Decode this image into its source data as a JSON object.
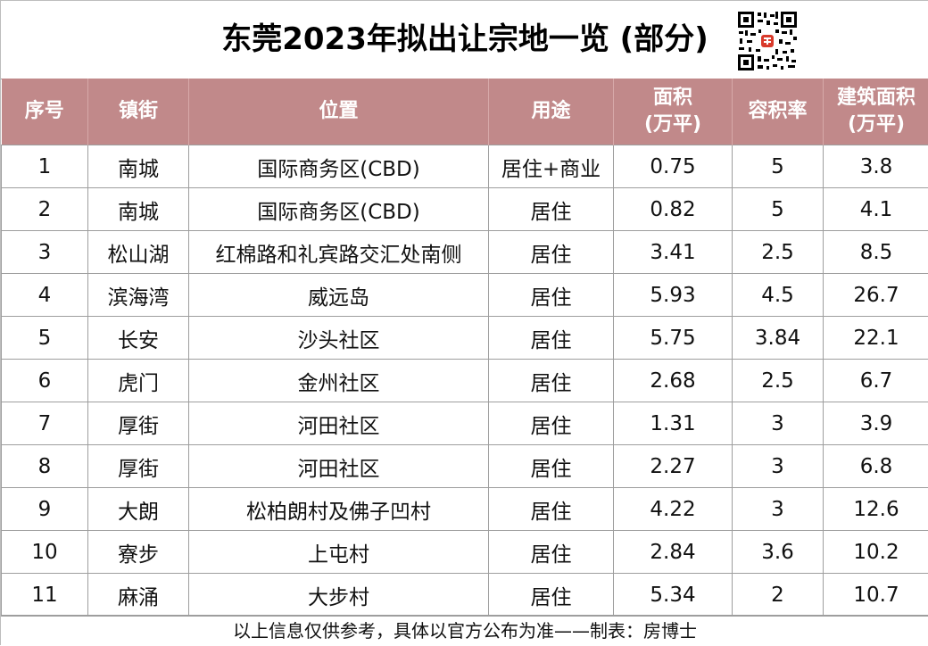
{
  "title": "东莞2023年拟出让宗地一览 (部分)",
  "qr_icon": "qr-code-icon",
  "colors": {
    "header_bg": "#c1898a",
    "header_text": "#ffffff",
    "grid_line": "#9e9e9e"
  },
  "headers": {
    "no": "序号",
    "street": "镇街",
    "location": "位置",
    "use": "用途",
    "area_line1": "面积",
    "area_line2": "(万平)",
    "far": "容积率",
    "build_line1": "建筑面积",
    "build_line2": "(万平)"
  },
  "rows": [
    {
      "no": "1",
      "street": "南城",
      "location": "国际商务区(CBD)",
      "use": "居住+商业",
      "area": "0.75",
      "far": "5",
      "build": "3.8"
    },
    {
      "no": "2",
      "street": "南城",
      "location": "国际商务区(CBD)",
      "use": "居住",
      "area": "0.82",
      "far": "5",
      "build": "4.1"
    },
    {
      "no": "3",
      "street": "松山湖",
      "location": "红棉路和礼宾路交汇处南侧",
      "use": "居住",
      "area": "3.41",
      "far": "2.5",
      "build": "8.5"
    },
    {
      "no": "4",
      "street": "滨海湾",
      "location": "威远岛",
      "use": "居住",
      "area": "5.93",
      "far": "4.5",
      "build": "26.7"
    },
    {
      "no": "5",
      "street": "长安",
      "location": "沙头社区",
      "use": "居住",
      "area": "5.75",
      "far": "3.84",
      "build": "22.1"
    },
    {
      "no": "6",
      "street": "虎门",
      "location": "金州社区",
      "use": "居住",
      "area": "2.68",
      "far": "2.5",
      "build": "6.7"
    },
    {
      "no": "7",
      "street": "厚街",
      "location": "河田社区",
      "use": "居住",
      "area": "1.31",
      "far": "3",
      "build": "3.9"
    },
    {
      "no": "8",
      "street": "厚街",
      "location": "河田社区",
      "use": "居住",
      "area": "2.27",
      "far": "3",
      "build": "6.8"
    },
    {
      "no": "9",
      "street": "大朗",
      "location": "松柏朗村及佛子凹村",
      "use": "居住",
      "area": "4.22",
      "far": "3",
      "build": "12.6"
    },
    {
      "no": "10",
      "street": "寮步",
      "location": "上屯村",
      "use": "居住",
      "area": "2.84",
      "far": "3.6",
      "build": "10.2"
    },
    {
      "no": "11",
      "street": "麻涌",
      "location": "大步村",
      "use": "居住",
      "area": "5.34",
      "far": "2",
      "build": "10.7"
    }
  ],
  "footer": "以上信息仅供参考，具体以官方公布为准——制表：房博士"
}
